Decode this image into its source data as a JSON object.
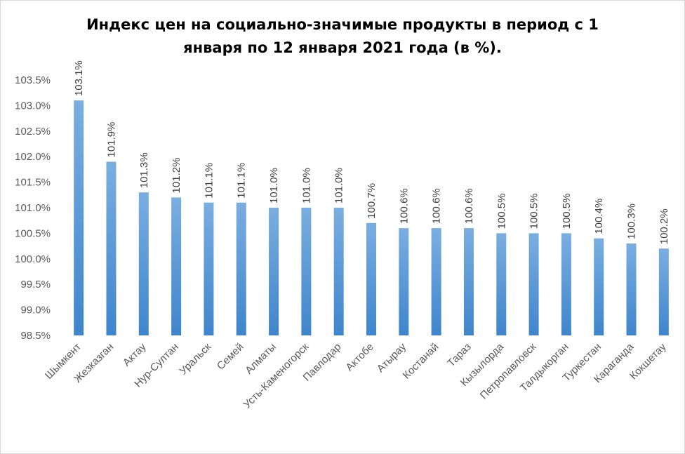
{
  "chart_data": {
    "type": "bar",
    "title_line1": "Индекс цен на социально-значимые продукты в период с 1",
    "title_line2": "января по 12 января 2021 года (в %).",
    "categories": [
      "Шымкент",
      "Жезказган",
      "Актау",
      "Нур-Султан",
      "Уральск",
      "Семей",
      "Алматы",
      "Усть-Каменогорск",
      "Павлодар",
      "Актобе",
      "Атырау",
      "Костанай",
      "Тараз",
      "Кызылорда",
      "Петропавловск",
      "Талдыкорган",
      "Туркестан",
      "Караганда",
      "Кокшетау"
    ],
    "values": [
      103.1,
      101.9,
      101.3,
      101.2,
      101.1,
      101.1,
      101.0,
      101.0,
      101.0,
      100.7,
      100.6,
      100.6,
      100.6,
      100.5,
      100.5,
      100.5,
      100.4,
      100.3,
      100.2
    ],
    "data_labels": [
      "103.1%",
      "101.9%",
      "101.3%",
      "101.2%",
      "101.1%",
      "101.1%",
      "101.0%",
      "101.0%",
      "101.0%",
      "100.7%",
      "100.6%",
      "100.6%",
      "100.6%",
      "100.5%",
      "100.5%",
      "100.5%",
      "100.4%",
      "100.3%",
      "100.2%"
    ],
    "yticks": [
      98.5,
      99.0,
      99.5,
      100.0,
      100.5,
      101.0,
      101.5,
      102.0,
      102.5,
      103.0,
      103.5
    ],
    "ytick_labels": [
      "98.5%",
      "99.0%",
      "99.5%",
      "100.0%",
      "100.5%",
      "101.0%",
      "101.5%",
      "102.0%",
      "102.5%",
      "103.0%",
      "103.5%"
    ],
    "ylim": [
      98.5,
      103.5
    ],
    "grid": false,
    "legend": "none",
    "bar_color_top": "#7aaee0",
    "bar_color_bottom": "#3f85cc"
  }
}
